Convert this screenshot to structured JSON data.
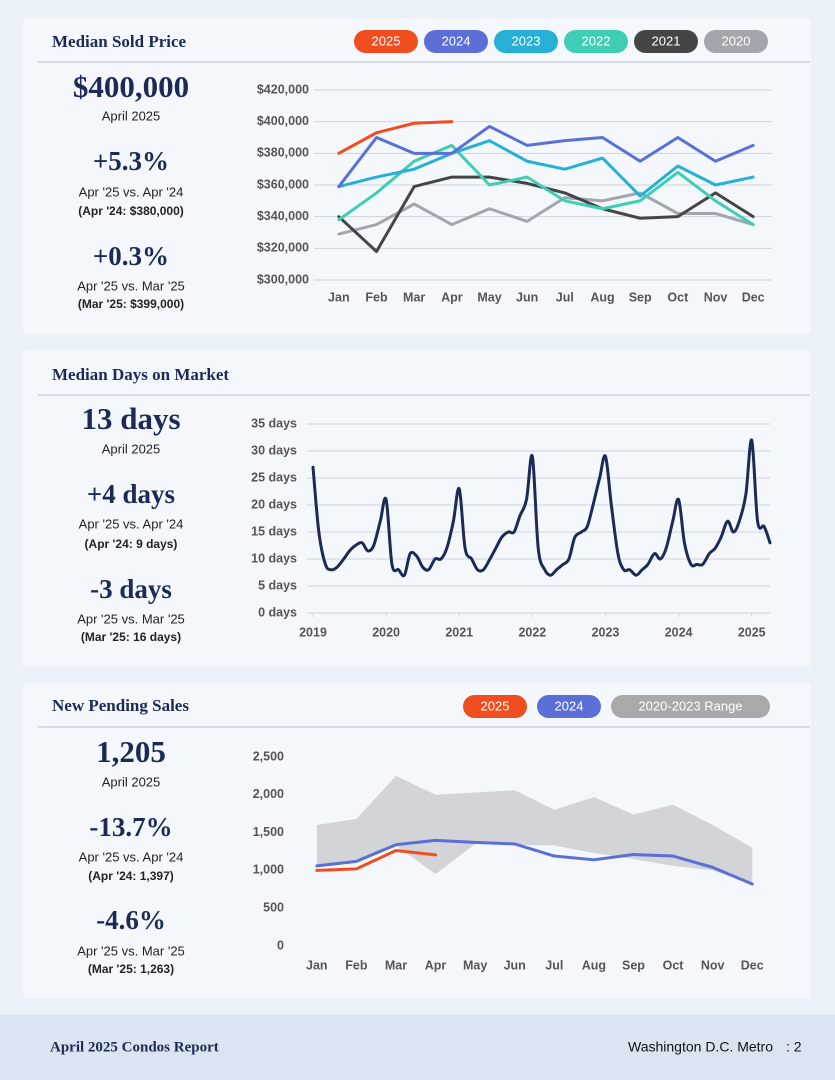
{
  "chart_data": [
    {
      "type": "line",
      "title": "Median Sold Price",
      "categories": [
        "Jan",
        "Feb",
        "Mar",
        "Apr",
        "May",
        "Jun",
        "Jul",
        "Aug",
        "Sep",
        "Oct",
        "Nov",
        "Dec"
      ],
      "series": [
        {
          "name": "2025",
          "color": "#f04e1e",
          "values": [
            380000,
            393000,
            399000,
            400000,
            null,
            null,
            null,
            null,
            null,
            null,
            null,
            null
          ]
        },
        {
          "name": "2024",
          "color": "#5b6fd6",
          "values": [
            359000,
            390000,
            380000,
            380000,
            397000,
            385000,
            388000,
            390000,
            375000,
            390000,
            375000,
            385000
          ]
        },
        {
          "name": "2023",
          "color": "#27b0d6",
          "values": [
            359000,
            365000,
            370000,
            380000,
            388000,
            375000,
            370000,
            377000,
            353000,
            372000,
            360000,
            365000
          ]
        },
        {
          "name": "2022",
          "color": "#3ecdb5",
          "values": [
            338000,
            355000,
            375000,
            385000,
            360000,
            365000,
            350000,
            345000,
            350000,
            368000,
            350000,
            335000
          ]
        },
        {
          "name": "2021",
          "color": "#454545",
          "values": [
            340000,
            318000,
            359000,
            365000,
            365000,
            361000,
            355000,
            345000,
            339000,
            340000,
            355000,
            340000
          ]
        },
        {
          "name": "2020",
          "color": "#a3a6ad",
          "values": [
            329000,
            335000,
            348000,
            335000,
            345000,
            337000,
            352000,
            350000,
            355000,
            342000,
            342000,
            335000
          ]
        }
      ],
      "ylim": [
        300000,
        420000
      ],
      "yticks": [
        {
          "value": 300000,
          "label": "$300,000"
        },
        {
          "value": 320000,
          "label": "$320,000"
        },
        {
          "value": 340000,
          "label": "$340,000"
        },
        {
          "value": 360000,
          "label": "$360,000"
        },
        {
          "value": 380000,
          "label": "$380,000"
        },
        {
          "value": 400000,
          "label": "$400,000"
        },
        {
          "value": 420000,
          "label": "$420,000"
        }
      ],
      "grid": true
    },
    {
      "type": "line",
      "title": "Median Days on Market",
      "smooth": true,
      "x": [
        2019,
        2019.08,
        2019.17,
        2019.25,
        2019.33,
        2019.42,
        2019.5,
        2019.58,
        2019.67,
        2019.75,
        2019.83,
        2019.92,
        2020,
        2020.08,
        2020.17,
        2020.25,
        2020.33,
        2020.42,
        2020.5,
        2020.58,
        2020.67,
        2020.75,
        2020.83,
        2020.92,
        2021,
        2021.08,
        2021.17,
        2021.25,
        2021.33,
        2021.42,
        2021.5,
        2021.58,
        2021.67,
        2021.75,
        2021.83,
        2021.92,
        2022,
        2022.08,
        2022.17,
        2022.25,
        2022.33,
        2022.42,
        2022.5,
        2022.58,
        2022.67,
        2022.75,
        2022.83,
        2022.92,
        2023,
        2023.08,
        2023.17,
        2023.25,
        2023.33,
        2023.42,
        2023.5,
        2023.58,
        2023.67,
        2023.75,
        2023.83,
        2023.92,
        2024,
        2024.08,
        2024.17,
        2024.25,
        2024.33,
        2024.42,
        2024.5,
        2024.58,
        2024.67,
        2024.75,
        2024.83,
        2024.92,
        2025,
        2025.08,
        2025.17,
        2025.25
      ],
      "series": [
        {
          "color": "#1c2a55",
          "values": [
            27,
            15,
            9,
            8,
            8.5,
            10,
            11.5,
            12.5,
            13,
            11.5,
            12.5,
            17,
            21,
            9,
            8,
            7,
            11,
            10.5,
            8.5,
            8,
            10,
            10,
            12,
            17,
            23,
            12,
            10,
            8,
            8,
            10,
            12,
            14,
            15,
            15,
            18,
            21,
            29,
            12,
            8,
            7,
            8,
            9,
            10,
            14,
            15,
            16,
            20,
            25,
            29,
            20,
            11,
            8,
            8,
            7,
            8,
            9,
            11,
            10,
            12,
            17,
            21,
            13,
            9,
            9,
            9,
            11,
            12,
            14,
            17,
            15,
            17,
            22,
            32,
            17,
            16,
            13
          ]
        }
      ],
      "xlim": [
        2019,
        2025.25
      ],
      "xticks": [
        2019,
        2020,
        2021,
        2022,
        2023,
        2024,
        2025
      ],
      "ylim": [
        0,
        35
      ],
      "yticks": [
        {
          "value": 0,
          "label": "0 days"
        },
        {
          "value": 5,
          "label": "5 days"
        },
        {
          "value": 10,
          "label": "10 days"
        },
        {
          "value": 15,
          "label": "15 days"
        },
        {
          "value": 20,
          "label": "20 days"
        },
        {
          "value": 25,
          "label": "25 days"
        },
        {
          "value": 30,
          "label": "30 days"
        },
        {
          "value": 35,
          "label": "35 days"
        }
      ],
      "grid": true
    },
    {
      "type": "line",
      "title": "New Pending Sales",
      "categories": [
        "Jan",
        "Feb",
        "Mar",
        "Apr",
        "May",
        "Jun",
        "Jul",
        "Aug",
        "Sep",
        "Oct",
        "Nov",
        "Dec"
      ],
      "series": [
        {
          "name": "2025",
          "color": "#f04e1e",
          "values": [
            1000,
            1020,
            1263,
            1205,
            null,
            null,
            null,
            null,
            null,
            null,
            null,
            null
          ]
        },
        {
          "name": "2024",
          "color": "#5b6fd6",
          "values": [
            1060,
            1120,
            1340,
            1397,
            1370,
            1350,
            1190,
            1140,
            1210,
            1190,
            1040,
            820
          ]
        },
        {
          "name": "2020-2023 Range",
          "color": "#a9a9a9",
          "low": [
            1050,
            1100,
            1330,
            950,
            1350,
            1340,
            1330,
            1230,
            1150,
            1060,
            1000,
            820
          ],
          "high": [
            1600,
            1680,
            2250,
            2000,
            2030,
            2060,
            1800,
            1970,
            1740,
            1870,
            1600,
            1300
          ]
        }
      ],
      "ylim": [
        0,
        2500
      ],
      "yticks": [
        0,
        500,
        {
          "value": 1000,
          "label": "1,000"
        },
        {
          "value": 1500,
          "label": "1,500"
        },
        {
          "value": 2000,
          "label": "2,000"
        },
        {
          "value": 2500,
          "label": "2,500"
        }
      ],
      "grid": false
    }
  ],
  "stats": [
    {
      "value": "$400,000",
      "period": "April 2025",
      "change_1": "+5.3%",
      "compare_1": "Apr '25 vs. Apr '24",
      "prior_1": "(Apr '24: $380,000)",
      "change_2": "+0.3%",
      "compare_2": "Apr '25 vs. Mar '25",
      "prior_2": "(Mar '25: $399,000)"
    },
    {
      "value": "13 days",
      "period": "April 2025",
      "change_1": "+4 days",
      "compare_1": "Apr '25 vs. Apr '24",
      "prior_1": "(Apr '24: 9 days)",
      "change_2": "-3 days",
      "compare_2": "Apr '25 vs. Mar '25",
      "prior_2": "(Mar '25: 16 days)"
    },
    {
      "value": "1,205",
      "period": "April 2025",
      "change_1": "-13.7%",
      "compare_1": "Apr '25 vs. Apr '24",
      "prior_1": "(Apr '24: 1,397)",
      "change_2": "-4.6%",
      "compare_2": "Apr '25 vs. Mar '25",
      "prior_2": "(Mar '25: 1,263)"
    }
  ],
  "footer": {
    "title": "April 2025 Condos Report",
    "location": "Washington D.C. Metro",
    "page": ": 2"
  }
}
